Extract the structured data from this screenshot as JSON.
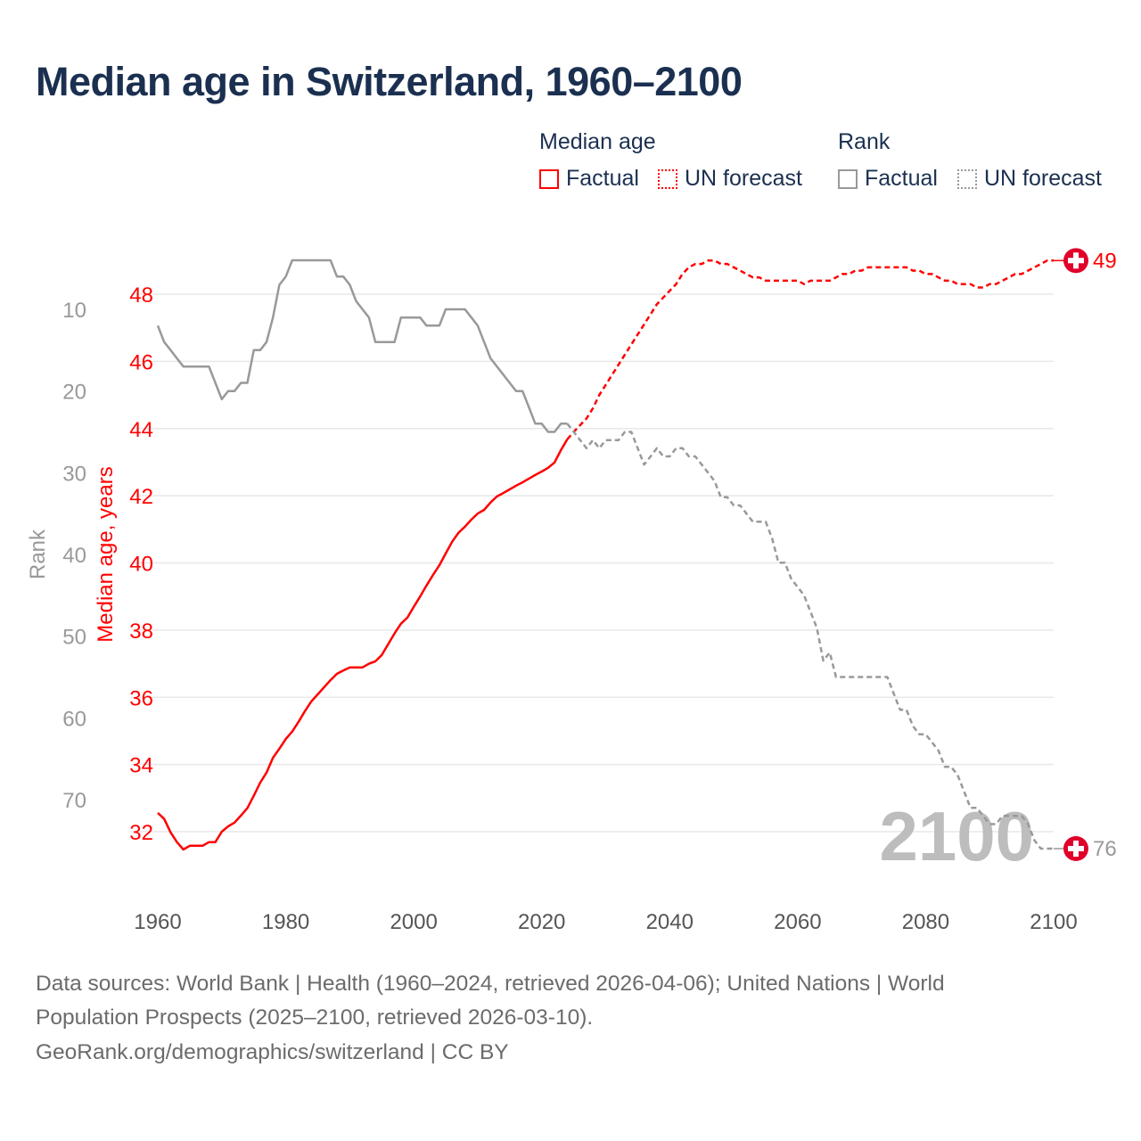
{
  "chart_data": {
    "type": "line",
    "title": "Median age in Switzerland, 1960–2100",
    "legend": {
      "median_heading": "Median age",
      "rank_heading": "Rank",
      "factual": "Factual",
      "forecast": "UN forecast",
      "placement": "top-right"
    },
    "y_left_label": "Median age, years",
    "y_rank_label": "Rank",
    "x_ticks": [
      "1960",
      "1980",
      "2000",
      "2020",
      "2040",
      "2060",
      "2080",
      "2100"
    ],
    "x_range": [
      1960,
      2100
    ],
    "median_ticks": [
      "32",
      "34",
      "36",
      "38",
      "40",
      "42",
      "44",
      "46",
      "48"
    ],
    "median_range": [
      32,
      48
    ],
    "rank_ticks": [
      "10",
      "20",
      "30",
      "40",
      "50",
      "60",
      "70"
    ],
    "rank_range": [
      10,
      70
    ],
    "grid": true,
    "current_year_label": "2100",
    "end_labels": {
      "median": "49",
      "rank": "76"
    },
    "colors": {
      "median": "#ff0000",
      "rank": "#999999",
      "title": "#1b3050",
      "marker": "#e0002a"
    },
    "series": [
      {
        "name": "Median age — Factual",
        "axis": "median",
        "style": "solid",
        "start_year": 1960,
        "values": [
          32.56,
          32.38,
          31.98,
          31.69,
          31.47,
          31.58,
          31.58,
          31.58,
          31.69,
          31.69,
          32.0,
          32.16,
          32.27,
          32.48,
          32.7,
          33.07,
          33.46,
          33.76,
          34.2,
          34.47,
          34.76,
          34.98,
          35.27,
          35.59,
          35.88,
          36.09,
          36.3,
          36.51,
          36.7,
          36.8,
          36.89,
          36.89,
          36.89,
          37.0,
          37.07,
          37.26,
          37.58,
          37.9,
          38.19,
          38.37,
          38.69,
          39.0,
          39.33,
          39.64,
          39.93,
          40.28,
          40.63,
          40.9,
          41.08,
          41.29,
          41.47,
          41.58,
          41.8,
          41.98,
          42.08,
          42.19,
          42.3,
          42.4,
          42.51,
          42.62,
          42.72,
          42.83,
          42.99,
          43.36,
          43.68
        ]
      },
      {
        "name": "Median age — UN forecast",
        "axis": "median",
        "style": "dashed",
        "start_year": 2024,
        "values": [
          43.68,
          43.9,
          44.1,
          44.3,
          44.6,
          45.0,
          45.3,
          45.6,
          45.9,
          46.2,
          46.5,
          46.8,
          47.1,
          47.4,
          47.7,
          47.9,
          48.1,
          48.3,
          48.6,
          48.8,
          48.9,
          48.9,
          49.0,
          49.0,
          48.9,
          48.9,
          48.8,
          48.7,
          48.6,
          48.5,
          48.5,
          48.4,
          48.4,
          48.4,
          48.4,
          48.4,
          48.4,
          48.3,
          48.4,
          48.4,
          48.4,
          48.4,
          48.5,
          48.6,
          48.6,
          48.7,
          48.7,
          48.8,
          48.8,
          48.8,
          48.8,
          48.8,
          48.8,
          48.8,
          48.7,
          48.7,
          48.6,
          48.6,
          48.5,
          48.4,
          48.4,
          48.3,
          48.3,
          48.3,
          48.2,
          48.2,
          48.3,
          48.3,
          48.4,
          48.5,
          48.6,
          48.6,
          48.7,
          48.8,
          48.9,
          49.0,
          49.0
        ]
      },
      {
        "name": "Rank — Factual",
        "axis": "rank",
        "style": "solid",
        "start_year": 1960,
        "values": [
          12,
          14,
          15,
          16,
          17,
          17,
          17,
          17,
          17,
          19,
          21,
          20,
          20,
          19,
          19,
          15,
          15,
          14,
          11,
          7,
          6,
          4,
          4,
          4,
          4,
          4,
          4,
          4,
          6,
          6,
          7,
          9,
          10,
          11,
          14,
          14,
          14,
          14,
          11,
          11,
          11,
          11,
          12,
          12,
          12,
          10,
          10,
          10,
          10,
          11,
          12,
          14,
          16,
          17,
          18,
          19,
          20,
          20,
          22,
          24,
          24,
          25,
          25,
          24,
          24
        ]
      },
      {
        "name": "Rank — UN forecast",
        "axis": "rank",
        "style": "dashed",
        "start_year": 2024,
        "values": [
          24,
          25,
          26,
          27,
          26,
          27,
          26,
          26,
          26,
          25,
          25,
          27,
          29,
          28,
          27,
          28,
          28,
          27,
          27,
          28,
          28,
          29,
          30,
          31,
          33,
          33,
          34,
          34,
          35,
          36,
          36,
          36,
          38,
          41,
          41,
          43,
          44,
          45,
          47,
          49,
          53,
          52,
          55,
          55,
          55,
          55,
          55,
          55,
          55,
          55,
          55,
          57,
          59,
          59,
          61,
          62,
          62,
          63,
          64,
          66,
          66,
          67,
          69,
          71,
          71,
          72,
          73,
          73,
          72,
          72,
          72,
          72,
          73,
          75,
          76,
          76,
          76
        ]
      }
    ]
  },
  "footer": {
    "line1": "Data sources: World Bank | Health (1960–2024, retrieved 2026-04-06); United Nations | World",
    "line2": "Population Prospects (2025–2100, retrieved 2026-03-10).",
    "line3": "GeoRank.org/demographics/switzerland | CC BY"
  }
}
